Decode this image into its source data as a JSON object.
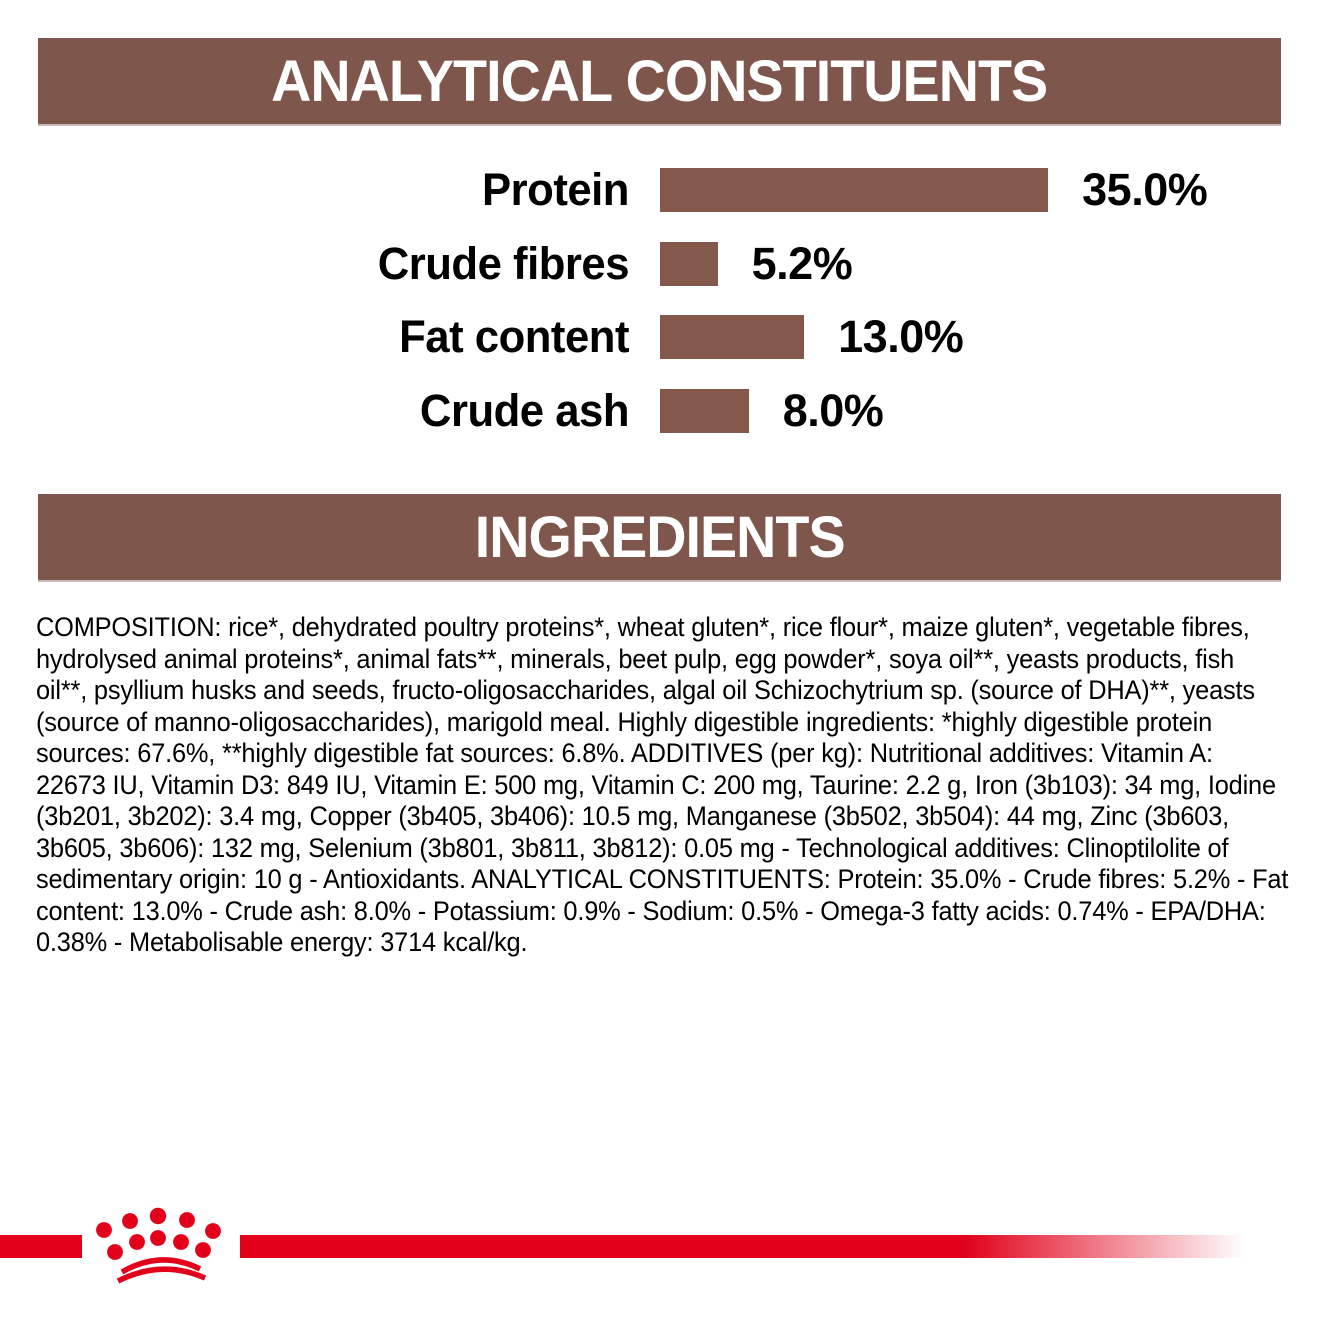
{
  "sections": {
    "analytical": {
      "title": "ANALYTICAL CONSTITUENTS"
    },
    "ingredients": {
      "title": "INGREDIENTS"
    }
  },
  "chart_data": {
    "type": "bar",
    "orientation": "horizontal",
    "title": "ANALYTICAL CONSTITUENTS",
    "categories": [
      "Protein",
      "Crude fibres",
      "Fat content",
      "Crude ash"
    ],
    "values": [
      35.0,
      5.2,
      13.0,
      8.0
    ],
    "value_labels": [
      "35.0%",
      "5.2%",
      "13.0%",
      "8.0%"
    ],
    "unit": "%",
    "xlim": [
      0,
      35
    ],
    "grid": false,
    "legend": false,
    "bar_color": "#84574B"
  },
  "ingredients_text": {
    "lines": [
      "COMPOSITION: rice*, dehydrated poultry proteins*, wheat gluten*, rice flour*, maize gluten*, vegetable fibres,",
      "hydrolysed animal proteins*, animal fats**, minerals, beet pulp, egg powder*, soya oil**, yeasts products, fish",
      "oil**, psyllium husks and seeds, fructo-oligosaccharides, algal oil Schizochytrium sp. (source of DHA)**, yeasts",
      "(source of manno-oligosaccharides), marigold meal. Highly digestible ingredients: *highly digestible protein",
      "sources: 67.6%, **highly digestible fat sources: 6.8%. ADDITIVES (per kg): Nutritional additives: Vitamin A:",
      "22673 IU, Vitamin D3: 849 IU, Vitamin E: 500 mg, Vitamin C: 200 mg, Taurine: 2.2 g, Iron (3b103): 34 mg, Iodine",
      "(3b201, 3b202): 3.4 mg, Copper (3b405, 3b406): 10.5 mg, Manganese (3b502, 3b504): 44 mg, Zinc (3b603,",
      "3b605, 3b606): 132 mg, Selenium (3b801, 3b811, 3b812): 0.05 mg - Technological additives: Clinoptilolite of",
      "sedimentary origin: 10 g - Antioxidants. ANALYTICAL CONSTITUENTS: Protein: 35.0% - Crude fibres: 5.2% - Fat",
      "content: 13.0% - Crude ash: 8.0% - Potassium: 0.9% - Sodium: 0.5% - Omega-3 fatty acids: 0.74% - EPA/DHA:",
      "0.38% - Metabolisable energy: 3714 kcal/kg."
    ]
  },
  "footer": {
    "logo": "royal-canin-crown"
  },
  "colors": {
    "banner_brown": "#7F564B",
    "bar_brown": "#84574B",
    "accent_red": "#E2001A",
    "text_black": "#000000",
    "banner_text_white": "#FFFFFF"
  }
}
